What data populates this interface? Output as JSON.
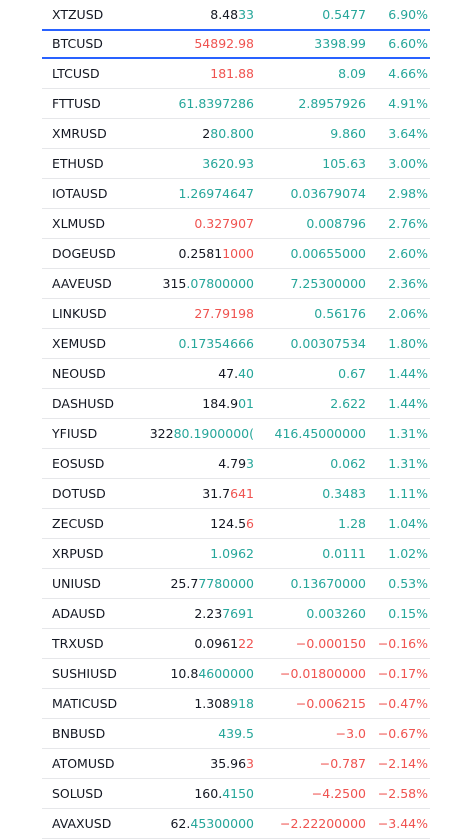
{
  "colors": {
    "up": "#26a69a",
    "down": "#ef5350"
  },
  "selected_row": 1,
  "rows": [
    {
      "symbol": "XTZUSD",
      "last": [
        "8.48",
        "33"
      ],
      "last_color": "up",
      "change": "0.5477",
      "change_pct": "6.90%",
      "change_color": "up"
    },
    {
      "symbol": "BTCUSD",
      "last": [
        "54892.98"
      ],
      "last_color": "down",
      "change": "3398.99",
      "change_pct": "6.60%",
      "change_color": "up"
    },
    {
      "symbol": "LTCUSD",
      "last": [
        "181.88"
      ],
      "last_color": "down",
      "change": "8.09",
      "change_pct": "4.66%",
      "change_color": "up"
    },
    {
      "symbol": "FTTUSD",
      "last": [
        "61.8397286"
      ],
      "last_color": "up",
      "change": "2.8957926",
      "change_pct": "4.91%",
      "change_color": "up"
    },
    {
      "symbol": "XMRUSD",
      "last": [
        "2",
        "80.800"
      ],
      "last_color": "up",
      "change": "9.860",
      "change_pct": "3.64%",
      "change_color": "up"
    },
    {
      "symbol": "ETHUSD",
      "last": [
        "3620.93"
      ],
      "last_color": "up",
      "change": "105.63",
      "change_pct": "3.00%",
      "change_color": "up"
    },
    {
      "symbol": "IOTAUSD",
      "last": [
        "1.26974647"
      ],
      "last_color": "up",
      "change": "0.03679074",
      "change_pct": "2.98%",
      "change_color": "up"
    },
    {
      "symbol": "XLMUSD",
      "last": [
        "0.327907"
      ],
      "last_color": "down",
      "change": "0.008796",
      "change_pct": "2.76%",
      "change_color": "up"
    },
    {
      "symbol": "DOGEUSD",
      "last": [
        "0.2581",
        "1000"
      ],
      "last_color": "down",
      "change": "0.00655000",
      "change_pct": "2.60%",
      "change_color": "up"
    },
    {
      "symbol": "AAVEUSD",
      "last": [
        "315",
        ".07800000"
      ],
      "last_color": "up",
      "change": "7.25300000",
      "change_pct": "2.36%",
      "change_color": "up"
    },
    {
      "symbol": "LINKUSD",
      "last": [
        "27.79198"
      ],
      "last_color": "down",
      "change": "0.56176",
      "change_pct": "2.06%",
      "change_color": "up"
    },
    {
      "symbol": "XEMUSD",
      "last": [
        "0.17354666"
      ],
      "last_color": "up",
      "change": "0.00307534",
      "change_pct": "1.80%",
      "change_color": "up"
    },
    {
      "symbol": "NEOUSD",
      "last": [
        "47.",
        "40"
      ],
      "last_color": "up",
      "change": "0.67",
      "change_pct": "1.44%",
      "change_color": "up"
    },
    {
      "symbol": "DASHUSD",
      "last": [
        "184.9",
        "01"
      ],
      "last_color": "up",
      "change": "2.622",
      "change_pct": "1.44%",
      "change_color": "up"
    },
    {
      "symbol": "YFIUSD",
      "last": [
        "322",
        "80.1900000("
      ],
      "last_color": "up",
      "change": "416.45000000",
      "change_pct": "1.31%",
      "change_color": "up"
    },
    {
      "symbol": "EOSUSD",
      "last": [
        "4.79",
        "3"
      ],
      "last_color": "up",
      "change": "0.062",
      "change_pct": "1.31%",
      "change_color": "up"
    },
    {
      "symbol": "DOTUSD",
      "last": [
        "31.7",
        "641"
      ],
      "last_color": "down",
      "change": "0.3483",
      "change_pct": "1.11%",
      "change_color": "up"
    },
    {
      "symbol": "ZECUSD",
      "last": [
        "124.5",
        "6"
      ],
      "last_color": "down",
      "change": "1.28",
      "change_pct": "1.04%",
      "change_color": "up"
    },
    {
      "symbol": "XRPUSD",
      "last": [
        "1.0962"
      ],
      "last_color": "up",
      "change": "0.0111",
      "change_pct": "1.02%",
      "change_color": "up"
    },
    {
      "symbol": "UNIUSD",
      "last": [
        "25.7",
        "7780000"
      ],
      "last_color": "up",
      "change": "0.13670000",
      "change_pct": "0.53%",
      "change_color": "up"
    },
    {
      "symbol": "ADAUSD",
      "last": [
        "2.23",
        "7691"
      ],
      "last_color": "up",
      "change": "0.003260",
      "change_pct": "0.15%",
      "change_color": "up"
    },
    {
      "symbol": "TRXUSD",
      "last": [
        "0.0961",
        "22"
      ],
      "last_color": "down",
      "change": "−0.000150",
      "change_pct": "−0.16%",
      "change_color": "down"
    },
    {
      "symbol": "SUSHIUSD",
      "last": [
        "10.8",
        "4600000"
      ],
      "last_color": "up",
      "change": "−0.01800000",
      "change_pct": "−0.17%",
      "change_color": "down"
    },
    {
      "symbol": "MATICUSD",
      "last": [
        "1.308",
        "918"
      ],
      "last_color": "up",
      "change": "−0.006215",
      "change_pct": "−0.47%",
      "change_color": "down"
    },
    {
      "symbol": "BNBUSD",
      "last": [
        "439.5"
      ],
      "last_color": "up",
      "change": "−3.0",
      "change_pct": "−0.67%",
      "change_color": "down"
    },
    {
      "symbol": "ATOMUSD",
      "last": [
        "35.96",
        "3"
      ],
      "last_color": "down",
      "change": "−0.787",
      "change_pct": "−2.14%",
      "change_color": "down"
    },
    {
      "symbol": "SOLUSD",
      "last": [
        "160.",
        "4150"
      ],
      "last_color": "up",
      "change": "−4.2500",
      "change_pct": "−2.58%",
      "change_color": "down"
    },
    {
      "symbol": "AVAXUSD",
      "last": [
        "62.",
        "45300000"
      ],
      "last_color": "up",
      "change": "−2.22200000",
      "change_pct": "−3.44%",
      "change_color": "down"
    }
  ]
}
